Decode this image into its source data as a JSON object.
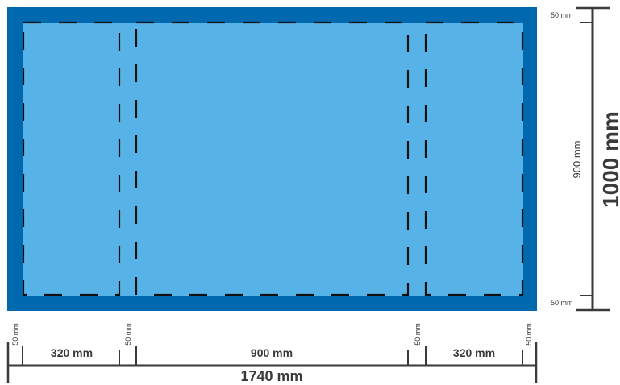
{
  "colors": {
    "border": "#0068AE",
    "panel": "#57B3E7",
    "cut_line": "#111111",
    "dimension_line": "#3a3a3a"
  },
  "horizontal": {
    "margin_left_label": "50 mm",
    "section_1_label": "320 mm",
    "gap_1_label": "50 mm",
    "section_2_label": "900 mm",
    "gap_2_label": "50 mm",
    "section_3_label": "320 mm",
    "margin_right_label": "50 mm",
    "total_label": "1740 mm"
  },
  "vertical": {
    "margin_top_label": "50 mm",
    "inner_label": "900 mm",
    "margin_bottom_label": "50 mm",
    "total_label": "1000 mm"
  }
}
